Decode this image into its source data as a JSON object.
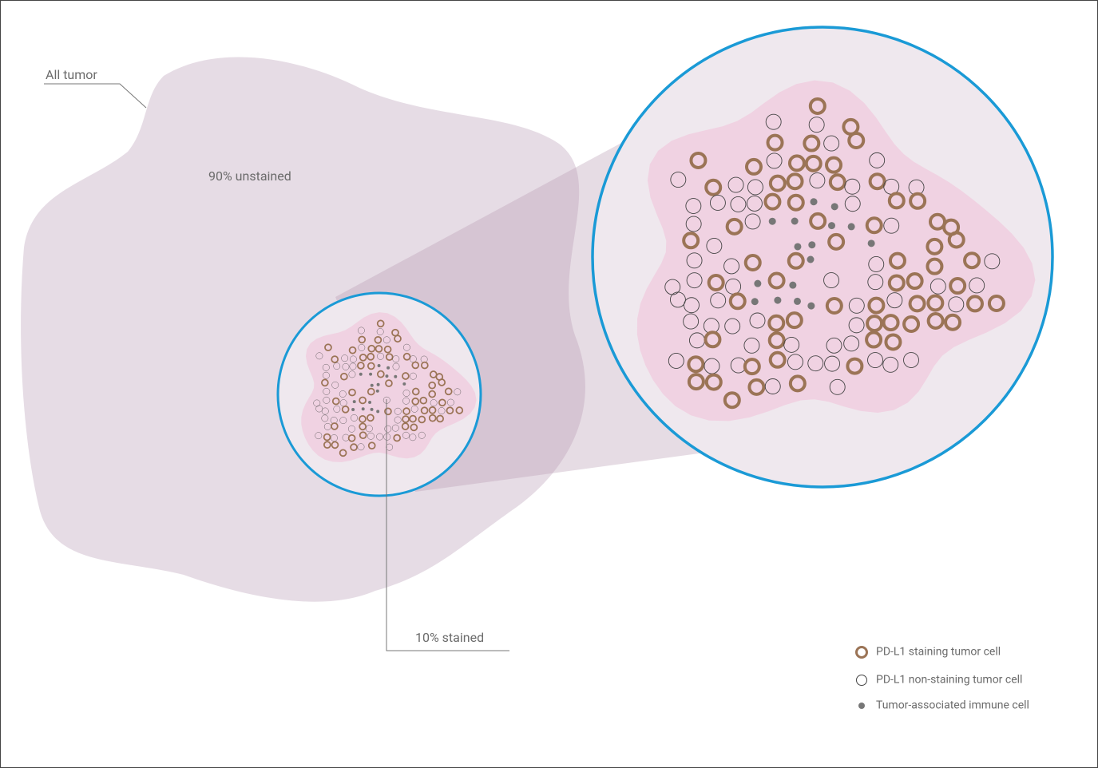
{
  "labels": {
    "all_tumor": "All tumor",
    "unstained": "90% unstained",
    "stained": "10% stained"
  },
  "legend": [
    {
      "label": "PD-L1 staining tumor cell"
    },
    {
      "label": "PD-L1 non-staining tumor cell"
    },
    {
      "label": "Tumor-associated immune cell"
    }
  ]
}
